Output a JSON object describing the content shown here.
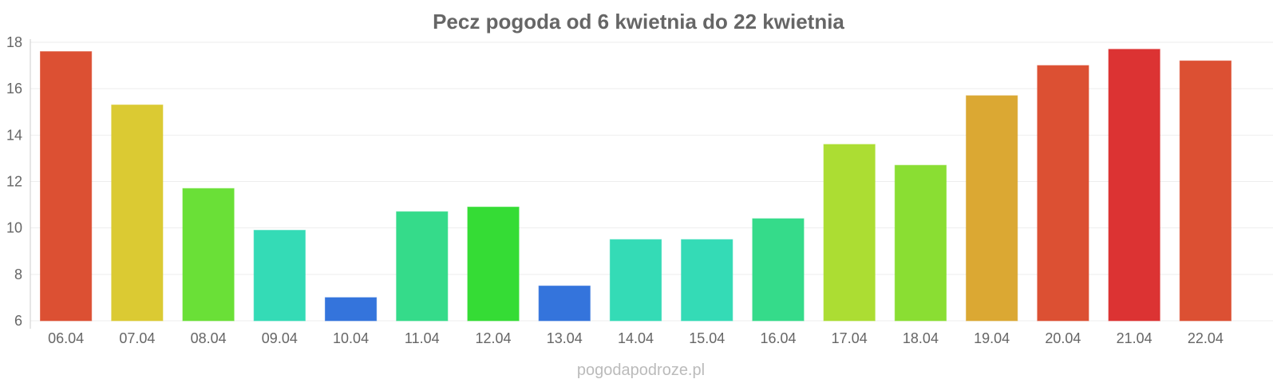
{
  "chart_data": {
    "type": "bar",
    "title": "Pecz pogoda od 6 kwietnia do 22 kwietnia",
    "xlabel": "",
    "ylabel": "",
    "categories": [
      "06.04",
      "07.04",
      "08.04",
      "09.04",
      "10.04",
      "11.04",
      "12.04",
      "13.04",
      "14.04",
      "15.04",
      "16.04",
      "17.04",
      "18.04",
      "19.04",
      "20.04",
      "21.04",
      "22.04"
    ],
    "values": [
      17.6,
      15.3,
      11.7,
      9.9,
      7.0,
      10.7,
      10.9,
      7.5,
      9.5,
      9.5,
      10.4,
      13.6,
      12.7,
      15.7,
      17.0,
      17.7,
      17.2
    ],
    "colors": [
      "#dc5033",
      "#dbca33",
      "#6ae037",
      "#34dbb6",
      "#3474dc",
      "#35db8a",
      "#35dc35",
      "#3474dc",
      "#34dbb6",
      "#34dbb6",
      "#35db8a",
      "#acdd33",
      "#8ade33",
      "#dba833",
      "#dc5033",
      "#dc3333",
      "#dc5033"
    ],
    "ylim": [
      6,
      18
    ],
    "yticks": [
      "6",
      "8",
      "10",
      "12",
      "14",
      "16",
      "18"
    ],
    "grid": true,
    "legend": "none"
  },
  "watermark": "pogodapodroze.pl"
}
